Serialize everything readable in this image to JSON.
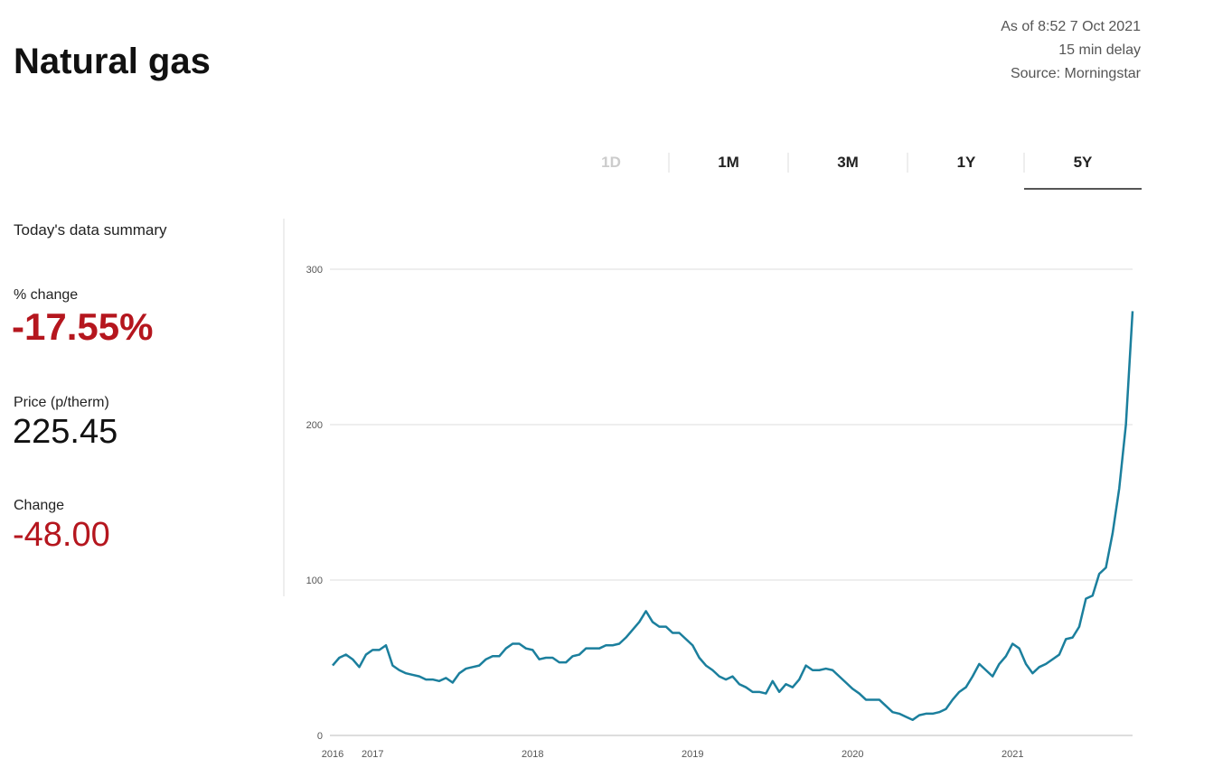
{
  "header": {
    "title": "Natural gas",
    "timestamp": "As of 8:52 7 Oct 2021",
    "delay": "15 min delay",
    "source": "Source: Morningstar"
  },
  "tabs": [
    "1D",
    "1M",
    "3M",
    "1Y",
    "5Y"
  ],
  "summary": {
    "heading": "Today's data summary",
    "pct_change_label": "% change",
    "pct_change": "-17.55%",
    "price_label": "Price (p/therm)",
    "price": "225.45",
    "change_label": "Change",
    "change": "-48.00"
  },
  "chart_data": {
    "type": "line",
    "color": "#1b7f9d",
    "categories": [
      "2016",
      null,
      null,
      null,
      null,
      null,
      "2017",
      null,
      null,
      null,
      null,
      null,
      null,
      null,
      null,
      null,
      null,
      null,
      null,
      null,
      null,
      null,
      null,
      null,
      null,
      null,
      null,
      null,
      null,
      null,
      "2018",
      null,
      null,
      null,
      null,
      null,
      null,
      null,
      null,
      null,
      null,
      null,
      null,
      null,
      null,
      null,
      null,
      null,
      null,
      null,
      null,
      null,
      null,
      null,
      "2019",
      null,
      null,
      null,
      null,
      null,
      null,
      null,
      null,
      null,
      null,
      null,
      null,
      null,
      null,
      null,
      null,
      null,
      null,
      null,
      null,
      null,
      null,
      null,
      "2020",
      null,
      null,
      null,
      null,
      null,
      null,
      null,
      null,
      null,
      null,
      null,
      null,
      null,
      null,
      null,
      null,
      null,
      null,
      null,
      null,
      null,
      null,
      null,
      "2021",
      null,
      null,
      null,
      null,
      null,
      null,
      null,
      null,
      null,
      null,
      null,
      null,
      null,
      null,
      null,
      null,
      null,
      null
    ],
    "values": [
      45,
      50,
      52,
      49,
      44,
      52,
      55,
      55,
      58,
      45,
      42,
      40,
      39,
      38,
      36,
      36,
      35,
      37,
      34,
      40,
      43,
      44,
      45,
      49,
      51,
      51,
      56,
      59,
      59,
      56,
      55,
      49,
      50,
      50,
      47,
      47,
      51,
      52,
      56,
      56,
      56,
      58,
      58,
      59,
      63,
      68,
      73,
      80,
      73,
      70,
      70,
      66,
      66,
      62,
      58,
      50,
      45,
      42,
      38,
      36,
      38,
      33,
      31,
      28,
      28,
      27,
      35,
      28,
      33,
      31,
      36,
      45,
      42,
      42,
      43,
      42,
      38,
      34,
      30,
      27,
      23,
      23,
      23,
      19,
      15,
      14,
      12,
      10,
      13,
      14,
      14,
      15,
      17,
      23,
      28,
      31,
      38,
      46,
      42,
      38,
      46,
      51,
      59,
      56,
      46,
      40,
      44,
      46,
      49,
      52,
      62,
      63,
      70,
      88,
      90,
      104,
      108,
      130,
      159,
      200,
      273
    ],
    "ylim": [
      0,
      300
    ],
    "yticks": [
      0,
      100,
      200,
      300
    ],
    "grid": true
  }
}
